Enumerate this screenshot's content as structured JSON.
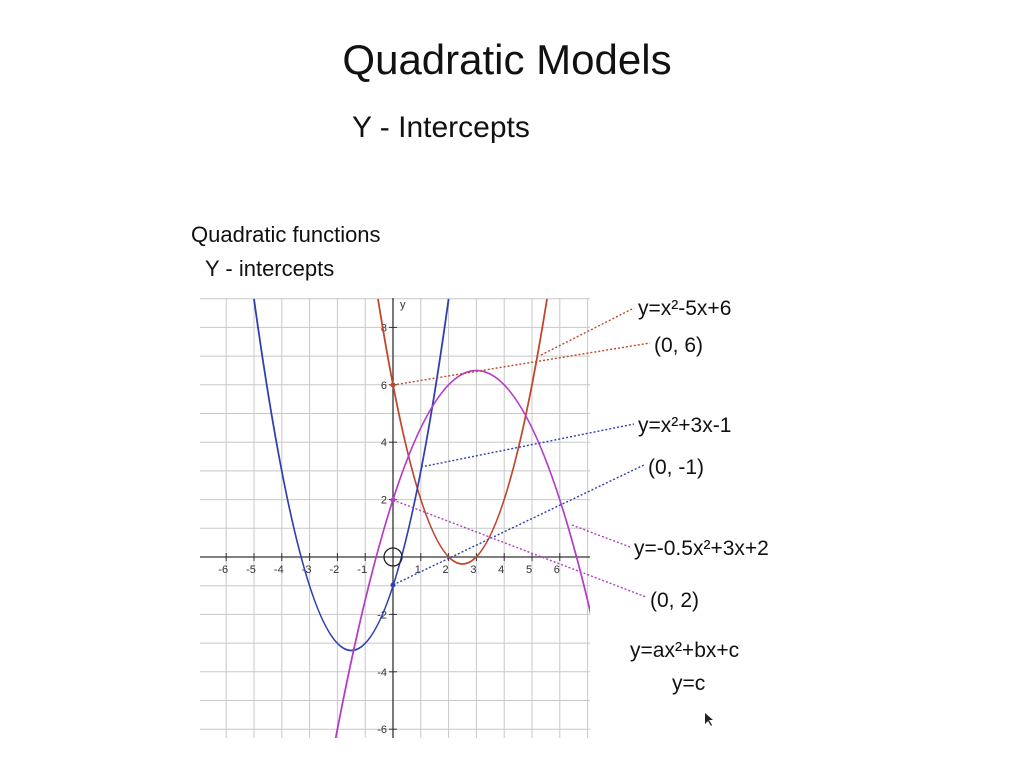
{
  "title": "Quadratic Models",
  "subtitle": "Y - Intercepts",
  "panel": {
    "title": [
      "Quadratic functions",
      "Y - intercepts"
    ],
    "axis": {
      "y_label": "y",
      "x_ticks": [
        -6,
        -5,
        -4,
        -3,
        -2,
        -1,
        1,
        2,
        3,
        4,
        5,
        6
      ],
      "y_ticks": [
        8,
        6,
        4,
        2,
        -2,
        -4,
        -6
      ]
    },
    "curves": [
      {
        "equation": "y=x²-5x+6",
        "intercept": "(0, 6)"
      },
      {
        "equation": "y=x²+3x-1",
        "intercept": "(0, -1)"
      },
      {
        "equation": "y=-0.5x²+3x+2",
        "intercept": "(0, 2)"
      }
    ],
    "general_form": [
      "y=ax²+bx+c",
      "y=c"
    ]
  }
}
